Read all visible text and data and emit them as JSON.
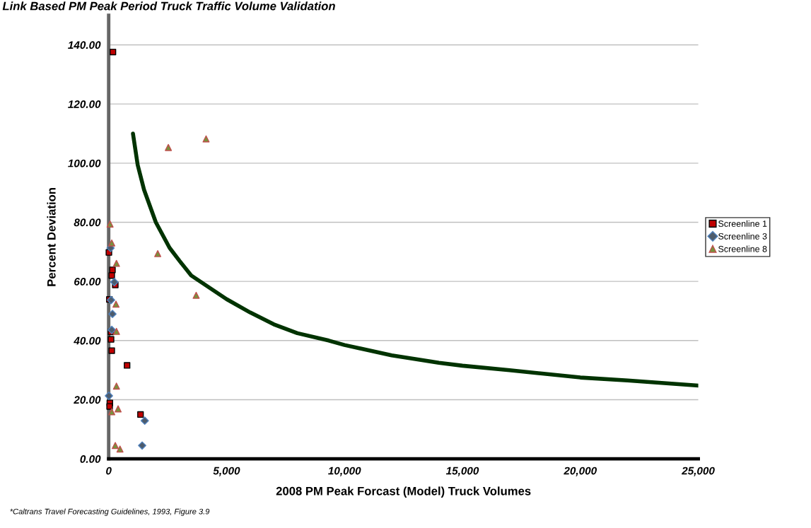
{
  "chart_data": {
    "type": "scatter",
    "title": "Link Based PM Peak Period Truck Traffic Volume Validation",
    "xlabel": "2008 PM Peak Forcast (Model) Truck Volumes",
    "ylabel": "Percent Deviation",
    "annotations": [
      "*Caltrans Travel Forecasting Guidelines, 1993, Figure 3.9"
    ],
    "xlim": [
      0,
      25000
    ],
    "xticks": [
      0,
      {
        "value": 5000,
        "label": "5,000"
      },
      {
        "value": 10000,
        "label": "10,000"
      },
      {
        "value": 15000,
        "label": "15,000"
      },
      {
        "value": 20000,
        "label": "20,000"
      },
      {
        "value": 25000,
        "label": "25,000"
      }
    ],
    "ylim": [
      0,
      150
    ],
    "yticks": [
      {
        "value": 0,
        "label": "0.00"
      },
      {
        "value": 20,
        "label": "20.00"
      },
      {
        "value": 40,
        "label": "40.00"
      },
      {
        "value": 60,
        "label": "60.00"
      },
      {
        "value": 80,
        "label": "80.00"
      },
      {
        "value": 100,
        "label": "100.00"
      },
      {
        "value": 120,
        "label": "120.00"
      },
      {
        "value": 140,
        "label": "140.00"
      }
    ],
    "grid": "y",
    "legend": "right",
    "series": [
      {
        "type": "line",
        "color": "#003300",
        "marker": "none",
        "x": [
          1030,
          1230,
          1500,
          2000,
          2580,
          3000,
          3500,
          4440,
          5000,
          6000,
          7000,
          8000,
          9330,
          10000,
          12000,
          14000,
          15000,
          17000,
          20000,
          22000,
          25000
        ],
        "values": [
          110,
          99.4,
          91,
          80,
          71.4,
          67,
          62,
          57,
          54,
          49.5,
          45.5,
          42.5,
          40,
          38.5,
          35,
          32.5,
          31.5,
          30,
          27.5,
          26.5,
          24.8
        ]
      },
      {
        "name": "Screenline 1",
        "color": "#c00000",
        "marker": "square",
        "x": [
          180,
          10,
          160,
          130,
          280,
          30,
          100,
          100,
          130,
          780,
          50,
          40,
          1350
        ],
        "values": [
          137.6,
          69.8,
          63.9,
          62.0,
          58.8,
          53.9,
          42.9,
          40.4,
          36.6,
          31.6,
          18.9,
          17.7,
          15.0
        ]
      },
      {
        "name": "Screenline 3",
        "color": "#4d5b6b",
        "marker": "diamond",
        "x": [
          80,
          240,
          100,
          160,
          130,
          10,
          1530,
          1420
        ],
        "values": [
          71.3,
          59.8,
          53.7,
          49.0,
          43.6,
          21.3,
          12.9,
          4.5
        ]
      },
      {
        "name": "Screenline 8",
        "color": "#77933c",
        "marker": "triangle",
        "x": [
          60,
          130,
          330,
          2080,
          2530,
          4130,
          3710,
          310,
          330,
          330,
          130,
          400,
          280,
          480
        ],
        "values": [
          79.4,
          73.0,
          66.1,
          69.4,
          105.3,
          108.2,
          55.3,
          52.3,
          43.1,
          24.6,
          15.9,
          16.9,
          4.5,
          3.3
        ]
      }
    ]
  }
}
